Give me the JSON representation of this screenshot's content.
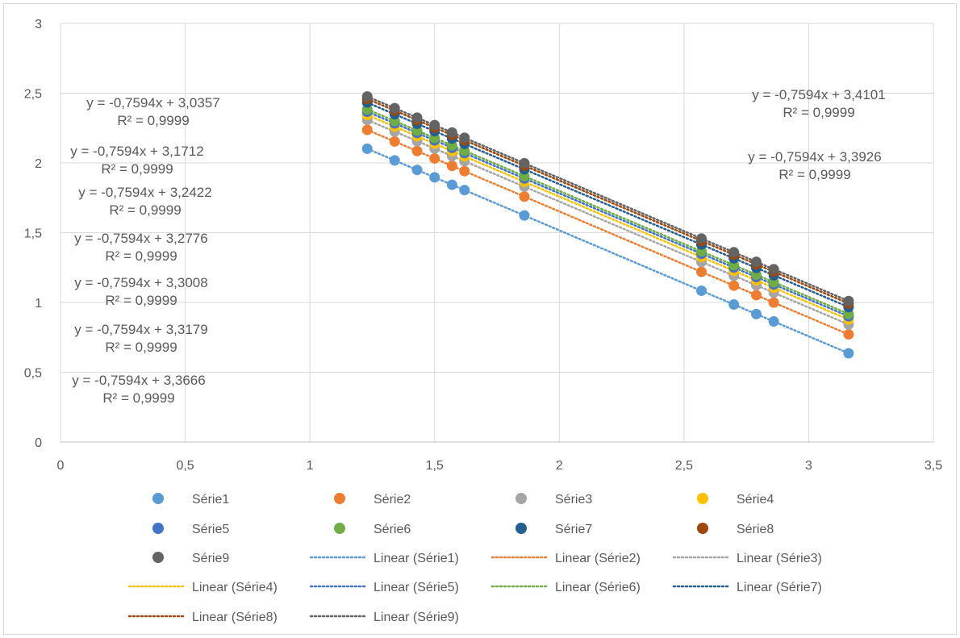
{
  "chart_data": {
    "type": "scatter",
    "xlim": [
      0,
      3.5
    ],
    "ylim": [
      0,
      3
    ],
    "x_ticks": [
      "0",
      "0,5",
      "1",
      "1,5",
      "2",
      "2,5",
      "3",
      "3,5"
    ],
    "y_ticks": [
      "0",
      "0,5",
      "1",
      "1,5",
      "2",
      "2,5",
      "3"
    ],
    "grid": "major, both axes",
    "legend_position": "bottom",
    "x": [
      1.23,
      1.34,
      1.43,
      1.5,
      1.57,
      1.62,
      1.86,
      2.57,
      2.7,
      2.79,
      2.86,
      3.16
    ],
    "slope": -0.7594,
    "series": [
      {
        "name": "Série1",
        "color": "#5b9bd5",
        "intercept": 3.0357
      },
      {
        "name": "Série2",
        "color": "#ed7d31",
        "intercept": 3.1712
      },
      {
        "name": "Série3",
        "color": "#a5a5a5",
        "intercept": 3.2422
      },
      {
        "name": "Série4",
        "color": "#ffc000",
        "intercept": 3.2776
      },
      {
        "name": "Série5",
        "color": "#4472c4",
        "intercept": 3.3008
      },
      {
        "name": "Série6",
        "color": "#70ad47",
        "intercept": 3.3179
      },
      {
        "name": "Série7",
        "color": "#255e91",
        "intercept": 3.3666
      },
      {
        "name": "Série8",
        "color": "#9e480e",
        "intercept": 3.3926
      },
      {
        "name": "Série9",
        "color": "#636363",
        "intercept": 3.4101
      }
    ],
    "trendline_labels": [
      {
        "equation": "y = -0,7594x + 3,0357",
        "r2": "R² = 0,9999"
      },
      {
        "equation": "y = -0,7594x + 3,1712",
        "r2": "R² = 0,9999"
      },
      {
        "equation": "y = -0,7594x + 3,2422",
        "r2": "R² = 0,9999"
      },
      {
        "equation": "y = -0,7594x + 3,2776",
        "r2": "R² = 0,9999"
      },
      {
        "equation": "y = -0,7594x + 3,3008",
        "r2": "R² = 0,9999"
      },
      {
        "equation": "y = -0,7594x + 3,3179",
        "r2": "R² = 0,9999"
      },
      {
        "equation": "y = -0,7594x + 3,3666",
        "r2": "R² = 0,9999"
      },
      {
        "equation": "y = -0,7594x + 3,4101",
        "r2": "R² = 0,9999"
      },
      {
        "equation": "y = -0,7594x + 3,3926",
        "r2": "R² = 0,9999"
      }
    ],
    "legend": [
      "Série1",
      "Série2",
      "Série3",
      "Série4",
      "Série5",
      "Série6",
      "Série7",
      "Série8",
      "Série9",
      "Linear (Série1)",
      "Linear (Série2)",
      "Linear (Série3)",
      "Linear (Série4)",
      "Linear (Série5)",
      "Linear (Série6)",
      "Linear (Série7)",
      "Linear (Série8)",
      "Linear (Série9)"
    ]
  }
}
